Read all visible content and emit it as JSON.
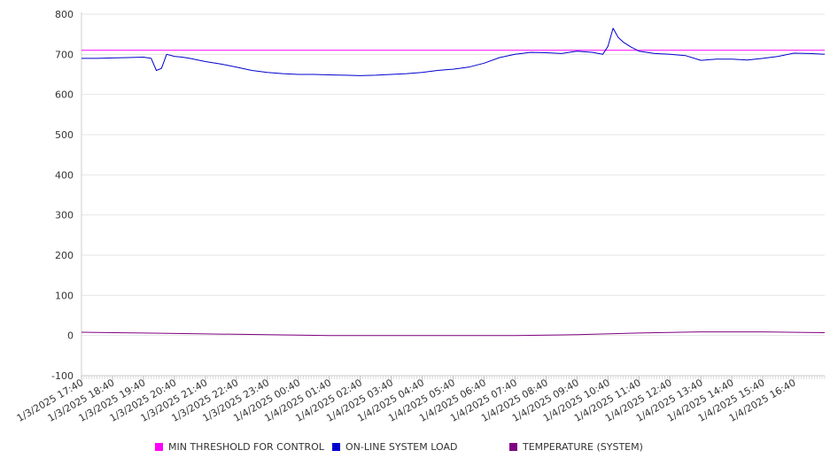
{
  "chart_data": {
    "type": "line",
    "title": "",
    "xlabel": "",
    "ylabel": "",
    "ylim": [
      -100,
      800
    ],
    "yticks": [
      "800",
      "700",
      "600",
      "500",
      "400",
      "300",
      "200",
      "100",
      "0",
      "-100"
    ],
    "x_tick_labels": [
      "1/3/2025 17:40",
      "1/3/2025 18:40",
      "1/3/2025 19:40",
      "1/3/2025 20:40",
      "1/3/2025 21:40",
      "1/3/2025 22:40",
      "1/3/2025 23:40",
      "1/4/2025 00:40",
      "1/4/2025 01:40",
      "1/4/2025 02:40",
      "1/4/2025 03:40",
      "1/4/2025 04:40",
      "1/4/2025 05:40",
      "1/4/2025 06:40",
      "1/4/2025 07:40",
      "1/4/2025 08:40",
      "1/4/2025 09:40",
      "1/4/2025 10:40",
      "1/4/2025 11:40",
      "1/4/2025 12:40",
      "1/4/2025 13:40",
      "1/4/2025 14:40",
      "1/4/2025 15:40",
      "1/4/2025 16:40"
    ],
    "x_range": [
      "1/3/2025 17:40",
      "1/4/2025 17:40"
    ],
    "grid": "horizontal",
    "legend_position": "bottom",
    "series": [
      {
        "name": "MIN THRESHOLD FOR CONTROL",
        "color": "#ff00ff",
        "x": [
          "1/3/2025 17:40",
          "1/4/2025 17:40"
        ],
        "values": [
          710,
          710
        ]
      },
      {
        "name": "ON-LINE SYSTEM LOAD",
        "color": "#0000cc",
        "x": [
          "1/3/2025 17:40",
          "1/3/2025 18:10",
          "1/3/2025 18:40",
          "1/3/2025 19:10",
          "1/3/2025 19:40",
          "1/3/2025 19:55",
          "1/3/2025 20:05",
          "1/3/2025 20:15",
          "1/3/2025 20:25",
          "1/3/2025 20:40",
          "1/3/2025 20:55",
          "1/3/2025 21:10",
          "1/3/2025 21:40",
          "1/3/2025 22:10",
          "1/3/2025 22:40",
          "1/3/2025 23:10",
          "1/3/2025 23:40",
          "1/4/2025 00:10",
          "1/4/2025 00:40",
          "1/4/2025 01:10",
          "1/4/2025 01:40",
          "1/4/2025 02:10",
          "1/4/2025 02:40",
          "1/4/2025 03:10",
          "1/4/2025 03:40",
          "1/4/2025 04:10",
          "1/4/2025 04:40",
          "1/4/2025 05:10",
          "1/4/2025 05:40",
          "1/4/2025 06:10",
          "1/4/2025 06:40",
          "1/4/2025 07:10",
          "1/4/2025 07:40",
          "1/4/2025 08:10",
          "1/4/2025 08:40",
          "1/4/2025 09:10",
          "1/4/2025 09:40",
          "1/4/2025 10:10",
          "1/4/2025 10:30",
          "1/4/2025 10:40",
          "1/4/2025 10:50",
          "1/4/2025 11:00",
          "1/4/2025 11:10",
          "1/4/2025 11:25",
          "1/4/2025 11:40",
          "1/4/2025 12:10",
          "1/4/2025 12:40",
          "1/4/2025 13:10",
          "1/4/2025 13:40",
          "1/4/2025 14:10",
          "1/4/2025 14:40",
          "1/4/2025 15:10",
          "1/4/2025 15:40",
          "1/4/2025 16:10",
          "1/4/2025 16:40",
          "1/4/2025 17:10",
          "1/4/2025 17:40"
        ],
        "values": [
          690,
          690,
          691,
          692,
          693,
          690,
          660,
          665,
          700,
          695,
          693,
          690,
          682,
          676,
          668,
          660,
          655,
          652,
          650,
          650,
          649,
          648,
          647,
          648,
          650,
          652,
          655,
          660,
          663,
          668,
          678,
          692,
          700,
          705,
          704,
          702,
          708,
          705,
          700,
          720,
          765,
          742,
          730,
          718,
          708,
          702,
          700,
          697,
          685,
          688,
          688,
          686,
          690,
          695,
          703,
          702,
          700
        ]
      },
      {
        "name": "TEMPERATURE (SYSTEM)",
        "color": "#800080",
        "x": [
          "1/3/2025 17:40",
          "1/3/2025 19:40",
          "1/3/2025 21:40",
          "1/3/2025 23:40",
          "1/4/2025 01:40",
          "1/4/2025 03:40",
          "1/4/2025 05:40",
          "1/4/2025 07:40",
          "1/4/2025 09:40",
          "1/4/2025 11:40",
          "1/4/2025 13:40",
          "1/4/2025 15:40",
          "1/4/2025 17:40"
        ],
        "values": [
          8,
          6,
          4,
          2,
          0,
          0,
          0,
          0,
          2,
          6,
          9,
          9,
          7
        ]
      }
    ]
  },
  "legend": {
    "items": [
      {
        "label": "MIN THRESHOLD FOR CONTROL",
        "color": "#ff00ff"
      },
      {
        "label": "ON-LINE SYSTEM LOAD",
        "color": "#0000cc"
      },
      {
        "label": "TEMPERATURE (SYSTEM)",
        "color": "#800080"
      }
    ]
  }
}
